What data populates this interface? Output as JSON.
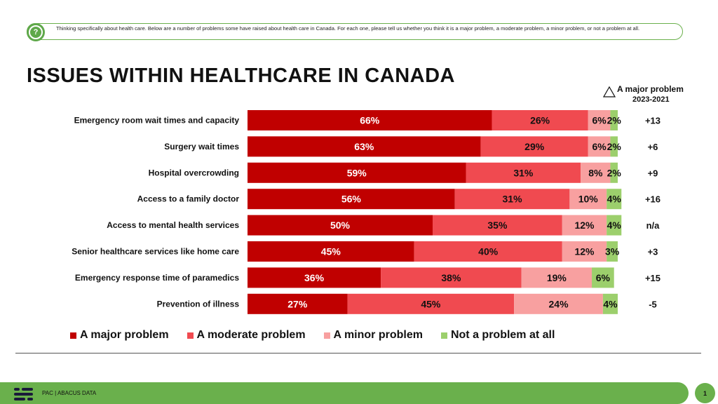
{
  "question": "Thinking specifically about health care. Below are a number of problems some have raised about health care in Canada.  For each one, please tell us whether you think it is a major problem, a moderate problem, a minor problem, or not a problem at all.",
  "question_icon": "question-icon",
  "title": "ISSUES WITHIN HEALTHCARE IN CANADA",
  "change_header": {
    "line1": "A major problem",
    "line2": "2023-2021"
  },
  "footer": {
    "brand": "PAC | ABACUS DATA",
    "page": "1"
  },
  "colors": {
    "major": "#c00000",
    "moderate": "#f04a50",
    "minor": "#f8a0a0",
    "none": "#9ccf6c",
    "accent": "#6ab04c"
  },
  "chart_data": {
    "type": "bar",
    "orientation": "horizontal",
    "stacked": true,
    "title": "ISSUES WITHIN HEALTHCARE IN CANADA",
    "xlim": [
      0,
      100
    ],
    "grid": false,
    "legend_position": "bottom",
    "categories": [
      "Emergency room wait times and capacity",
      "Surgery wait times",
      "Hospital overcrowding",
      "Access to a family doctor",
      "Access to mental health services",
      "Senior healthcare services like home care",
      "Emergency response time of paramedics",
      "Prevention of illness"
    ],
    "series": [
      {
        "name": "A major problem",
        "values": [
          66,
          63,
          59,
          56,
          50,
          45,
          36,
          27
        ]
      },
      {
        "name": "A moderate problem",
        "values": [
          26,
          29,
          31,
          31,
          35,
          40,
          38,
          45
        ]
      },
      {
        "name": "A minor problem",
        "values": [
          6,
          6,
          8,
          10,
          12,
          12,
          19,
          24
        ]
      },
      {
        "name": "Not a problem at all",
        "values": [
          2,
          2,
          2,
          4,
          4,
          3,
          6,
          4
        ]
      }
    ],
    "change_major_2023_2021": [
      "+13",
      "+6",
      "+9",
      "+16",
      "n/a",
      "+3",
      "+15",
      "-5"
    ]
  }
}
